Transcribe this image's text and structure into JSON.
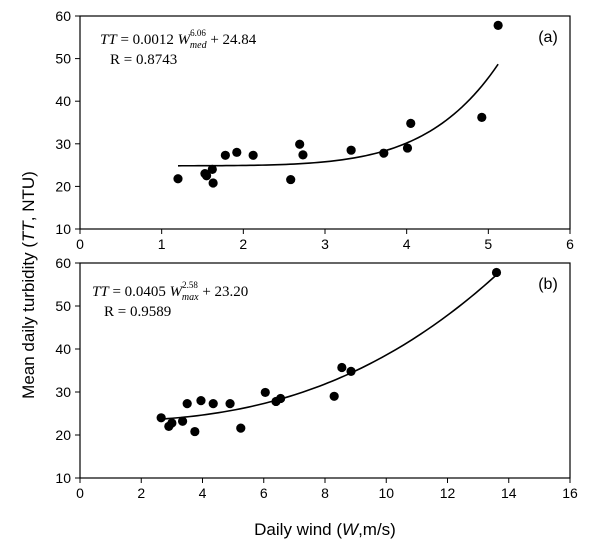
{
  "chart_data": [
    {
      "type": "scatter",
      "panel_label": "(a)",
      "equation": {
        "lhs": "TT",
        "eq1": " = 0.0012 ",
        "w": "W",
        "sup": "6.06",
        "sub": "med",
        "eq2": " + 24.84",
        "r": "R = 0.8743"
      },
      "xlim": [
        0,
        6
      ],
      "ylim": [
        10,
        60
      ],
      "xticks": [
        "0",
        "1",
        "2",
        "3",
        "4",
        "5",
        "6"
      ],
      "yticks": [
        "10",
        "20",
        "30",
        "40",
        "50",
        "60"
      ],
      "fit": {
        "a": 0.0012,
        "b": 6.06,
        "c": 24.84,
        "x_from": 1.2,
        "x_to": 5.12
      },
      "points": [
        {
          "x": 1.2,
          "y": 21.8
        },
        {
          "x": 1.53,
          "y": 23.0
        },
        {
          "x": 1.55,
          "y": 22.5
        },
        {
          "x": 1.62,
          "y": 24.0
        },
        {
          "x": 1.63,
          "y": 20.8
        },
        {
          "x": 1.78,
          "y": 27.3
        },
        {
          "x": 1.92,
          "y": 28.0
        },
        {
          "x": 2.12,
          "y": 27.3
        },
        {
          "x": 2.58,
          "y": 21.6
        },
        {
          "x": 2.69,
          "y": 29.9
        },
        {
          "x": 2.73,
          "y": 27.4
        },
        {
          "x": 3.32,
          "y": 28.5
        },
        {
          "x": 3.72,
          "y": 27.8
        },
        {
          "x": 4.01,
          "y": 29.0
        },
        {
          "x": 4.05,
          "y": 34.8
        },
        {
          "x": 4.92,
          "y": 36.2
        },
        {
          "x": 5.12,
          "y": 57.8
        }
      ]
    },
    {
      "type": "scatter",
      "panel_label": "(b)",
      "equation": {
        "lhs": "TT",
        "eq1": " = 0.0405 ",
        "w": "W",
        "sup": "2.58",
        "sub": "max",
        "eq2": " + 23.20",
        "r": "R = 0.9589"
      },
      "xlim": [
        0,
        16
      ],
      "ylim": [
        10,
        60
      ],
      "xticks": [
        "0",
        "2",
        "4",
        "6",
        "8",
        "10",
        "12",
        "14",
        "16"
      ],
      "yticks": [
        "10",
        "20",
        "30",
        "40",
        "50",
        "60"
      ],
      "fit": {
        "a": 0.0405,
        "b": 2.58,
        "c": 23.2,
        "x_from": 2.6,
        "x_to": 13.6
      },
      "points": [
        {
          "x": 2.65,
          "y": 24.0
        },
        {
          "x": 2.9,
          "y": 22.0
        },
        {
          "x": 3.0,
          "y": 22.8
        },
        {
          "x": 3.35,
          "y": 23.2
        },
        {
          "x": 3.5,
          "y": 27.3
        },
        {
          "x": 3.75,
          "y": 20.8
        },
        {
          "x": 3.95,
          "y": 28.0
        },
        {
          "x": 4.35,
          "y": 27.3
        },
        {
          "x": 4.9,
          "y": 27.3
        },
        {
          "x": 5.25,
          "y": 21.6
        },
        {
          "x": 6.05,
          "y": 29.9
        },
        {
          "x": 6.4,
          "y": 27.8
        },
        {
          "x": 6.55,
          "y": 28.5
        },
        {
          "x": 8.3,
          "y": 29.0
        },
        {
          "x": 8.55,
          "y": 35.7
        },
        {
          "x": 8.85,
          "y": 34.8
        },
        {
          "x": 13.6,
          "y": 57.8
        }
      ]
    }
  ],
  "ylabel": {
    "pre": "Mean daily turbidity (",
    "it": "TT",
    "post": ", NTU)"
  },
  "xlabel": {
    "pre": "Daily wind (",
    "it": "W",
    "post": ",m/s)"
  }
}
